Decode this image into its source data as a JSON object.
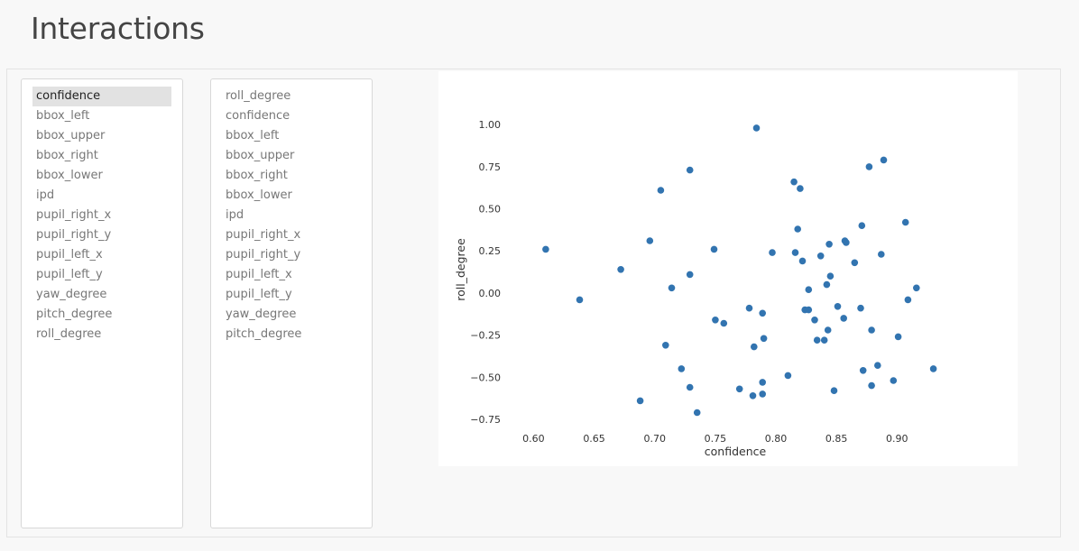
{
  "header": {
    "title": "Interactions"
  },
  "x_select": {
    "selected": "confidence",
    "options": [
      "confidence",
      "bbox_left",
      "bbox_upper",
      "bbox_right",
      "bbox_lower",
      "ipd",
      "pupil_right_x",
      "pupil_right_y",
      "pupil_left_x",
      "pupil_left_y",
      "yaw_degree",
      "pitch_degree",
      "roll_degree"
    ]
  },
  "y_select": {
    "selected": "",
    "options": [
      "roll_degree",
      "confidence",
      "bbox_left",
      "bbox_upper",
      "bbox_right",
      "bbox_lower",
      "ipd",
      "pupil_right_x",
      "pupil_right_y",
      "pupil_left_x",
      "pupil_left_y",
      "yaw_degree",
      "pitch_degree"
    ]
  },
  "colors": {
    "point": "#3274b0",
    "selected_bg": "#e2e2e2"
  },
  "chart_data": {
    "type": "scatter",
    "xlabel": "confidence",
    "ylabel": "roll_degree",
    "xlim": [
      0.59,
      0.94
    ],
    "ylim": [
      -0.82,
      1.06
    ],
    "x_ticks": [
      0.6,
      0.65,
      0.7,
      0.75,
      0.8,
      0.85,
      0.9
    ],
    "x_tick_labels": [
      "0.60",
      "0.65",
      "0.70",
      "0.75",
      "0.80",
      "0.85",
      "0.90"
    ],
    "y_ticks": [
      1.0,
      0.75,
      0.5,
      0.25,
      0.0,
      -0.25,
      -0.5,
      -0.75
    ],
    "y_tick_labels": [
      "1.00",
      "0.75",
      "0.50",
      "0.25",
      "0.00",
      "−0.25",
      "−0.50",
      "−0.75"
    ],
    "grid": false,
    "points": [
      [
        0.61,
        0.26
      ],
      [
        0.638,
        -0.04
      ],
      [
        0.672,
        0.14
      ],
      [
        0.688,
        -0.64
      ],
      [
        0.696,
        0.31
      ],
      [
        0.705,
        0.61
      ],
      [
        0.709,
        -0.31
      ],
      [
        0.714,
        0.03
      ],
      [
        0.722,
        -0.45
      ],
      [
        0.729,
        0.73
      ],
      [
        0.729,
        0.11
      ],
      [
        0.729,
        -0.56
      ],
      [
        0.735,
        -0.71
      ],
      [
        0.749,
        0.26
      ],
      [
        0.75,
        -0.16
      ],
      [
        0.757,
        -0.18
      ],
      [
        0.77,
        -0.57
      ],
      [
        0.778,
        -0.09
      ],
      [
        0.781,
        -0.61
      ],
      [
        0.782,
        -0.32
      ],
      [
        0.784,
        0.98
      ],
      [
        0.789,
        -0.12
      ],
      [
        0.79,
        -0.27
      ],
      [
        0.789,
        -0.53
      ],
      [
        0.789,
        -0.6
      ],
      [
        0.797,
        0.24
      ],
      [
        0.81,
        -0.49
      ],
      [
        0.815,
        0.66
      ],
      [
        0.816,
        0.24
      ],
      [
        0.818,
        0.38
      ],
      [
        0.82,
        0.62
      ],
      [
        0.822,
        0.19
      ],
      [
        0.824,
        -0.1
      ],
      [
        0.827,
        0.02
      ],
      [
        0.827,
        -0.1
      ],
      [
        0.832,
        -0.16
      ],
      [
        0.834,
        -0.28
      ],
      [
        0.837,
        0.22
      ],
      [
        0.84,
        -0.28
      ],
      [
        0.842,
        0.05
      ],
      [
        0.843,
        -0.22
      ],
      [
        0.844,
        0.29
      ],
      [
        0.845,
        0.1
      ],
      [
        0.848,
        -0.58
      ],
      [
        0.851,
        -0.08
      ],
      [
        0.856,
        -0.15
      ],
      [
        0.857,
        0.31
      ],
      [
        0.858,
        0.3
      ],
      [
        0.865,
        0.18
      ],
      [
        0.87,
        -0.09
      ],
      [
        0.871,
        0.4
      ],
      [
        0.872,
        -0.46
      ],
      [
        0.877,
        0.75
      ],
      [
        0.879,
        -0.22
      ],
      [
        0.879,
        -0.55
      ],
      [
        0.884,
        -0.43
      ],
      [
        0.887,
        0.23
      ],
      [
        0.889,
        0.79
      ],
      [
        0.897,
        -0.52
      ],
      [
        0.901,
        -0.26
      ],
      [
        0.907,
        0.42
      ],
      [
        0.909,
        -0.04
      ],
      [
        0.916,
        0.03
      ],
      [
        0.93,
        -0.45
      ]
    ]
  }
}
